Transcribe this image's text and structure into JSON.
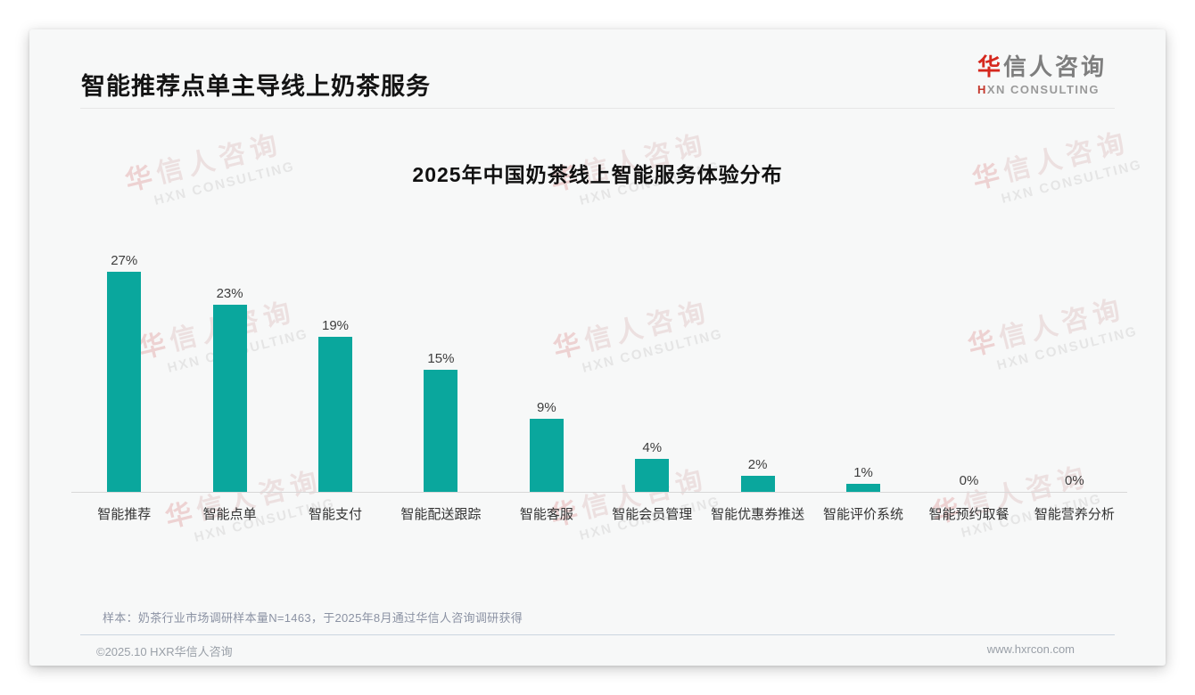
{
  "header": {
    "title": "智能推荐点单主导线上奶茶服务",
    "logo_cn": "华信人咨询",
    "logo_en": "HXN CONSULTING"
  },
  "watermark": {
    "cn": "华信人咨询",
    "en": "HXN CONSULTING"
  },
  "chart_data": {
    "type": "bar",
    "title": "2025年中国奶茶线上智能服务体验分布",
    "categories": [
      "智能推荐",
      "智能点单",
      "智能支付",
      "智能配送跟踪",
      "智能客服",
      "智能会员管理",
      "智能优惠券推送",
      "智能评价系统",
      "智能预约取餐",
      "智能营养分析"
    ],
    "values": [
      27,
      23,
      19,
      15,
      9,
      4,
      2,
      1,
      0,
      0
    ],
    "value_labels": [
      "27%",
      "23%",
      "19%",
      "15%",
      "9%",
      "4%",
      "2%",
      "1%",
      "0%",
      "0%"
    ],
    "bar_color": "#0aa79d",
    "ylim": [
      0,
      30
    ],
    "grid": false,
    "legend": "none",
    "xlabel": "",
    "ylabel": ""
  },
  "footnote": "样本：奶茶行业市场调研样本量N=1463，于2025年8月通过华信人咨询调研获得",
  "footer": {
    "left": "©2025.10 HXR华信人咨询",
    "right": "www.hxrcon.com"
  }
}
